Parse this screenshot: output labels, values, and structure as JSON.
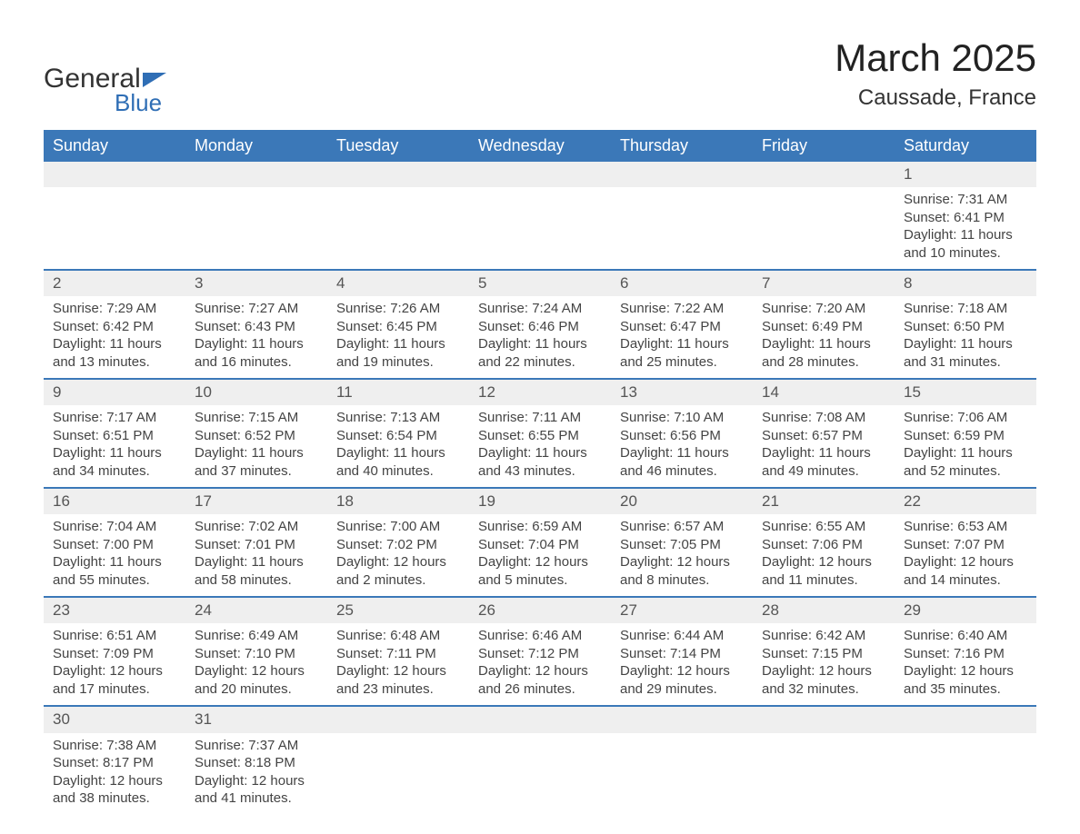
{
  "brand": {
    "general": "General",
    "blue": "Blue"
  },
  "title": "March 2025",
  "location": "Caussade, France",
  "colors": {
    "header_bg": "#3b78b8",
    "header_text": "#ffffff",
    "row_band": "#efefef",
    "row_border": "#3b78b8",
    "text": "#444444",
    "title_text": "#222222",
    "logo_accent": "#2f6eb5",
    "background": "#ffffff"
  },
  "typography": {
    "title_fontsize": 42,
    "location_fontsize": 24,
    "weekday_fontsize": 18,
    "cell_fontsize": 15,
    "daynum_fontsize": 17,
    "logo_general_fontsize": 30,
    "logo_blue_fontsize": 26
  },
  "weekdays": [
    "Sunday",
    "Monday",
    "Tuesday",
    "Wednesday",
    "Thursday",
    "Friday",
    "Saturday"
  ],
  "weeks": [
    {
      "days": [
        null,
        null,
        null,
        null,
        null,
        null,
        {
          "num": "1",
          "sunrise": "Sunrise: 7:31 AM",
          "sunset": "Sunset: 6:41 PM",
          "day1": "Daylight: 11 hours",
          "day2": "and 10 minutes."
        }
      ]
    },
    {
      "days": [
        {
          "num": "2",
          "sunrise": "Sunrise: 7:29 AM",
          "sunset": "Sunset: 6:42 PM",
          "day1": "Daylight: 11 hours",
          "day2": "and 13 minutes."
        },
        {
          "num": "3",
          "sunrise": "Sunrise: 7:27 AM",
          "sunset": "Sunset: 6:43 PM",
          "day1": "Daylight: 11 hours",
          "day2": "and 16 minutes."
        },
        {
          "num": "4",
          "sunrise": "Sunrise: 7:26 AM",
          "sunset": "Sunset: 6:45 PM",
          "day1": "Daylight: 11 hours",
          "day2": "and 19 minutes."
        },
        {
          "num": "5",
          "sunrise": "Sunrise: 7:24 AM",
          "sunset": "Sunset: 6:46 PM",
          "day1": "Daylight: 11 hours",
          "day2": "and 22 minutes."
        },
        {
          "num": "6",
          "sunrise": "Sunrise: 7:22 AM",
          "sunset": "Sunset: 6:47 PM",
          "day1": "Daylight: 11 hours",
          "day2": "and 25 minutes."
        },
        {
          "num": "7",
          "sunrise": "Sunrise: 7:20 AM",
          "sunset": "Sunset: 6:49 PM",
          "day1": "Daylight: 11 hours",
          "day2": "and 28 minutes."
        },
        {
          "num": "8",
          "sunrise": "Sunrise: 7:18 AM",
          "sunset": "Sunset: 6:50 PM",
          "day1": "Daylight: 11 hours",
          "day2": "and 31 minutes."
        }
      ]
    },
    {
      "days": [
        {
          "num": "9",
          "sunrise": "Sunrise: 7:17 AM",
          "sunset": "Sunset: 6:51 PM",
          "day1": "Daylight: 11 hours",
          "day2": "and 34 minutes."
        },
        {
          "num": "10",
          "sunrise": "Sunrise: 7:15 AM",
          "sunset": "Sunset: 6:52 PM",
          "day1": "Daylight: 11 hours",
          "day2": "and 37 minutes."
        },
        {
          "num": "11",
          "sunrise": "Sunrise: 7:13 AM",
          "sunset": "Sunset: 6:54 PM",
          "day1": "Daylight: 11 hours",
          "day2": "and 40 minutes."
        },
        {
          "num": "12",
          "sunrise": "Sunrise: 7:11 AM",
          "sunset": "Sunset: 6:55 PM",
          "day1": "Daylight: 11 hours",
          "day2": "and 43 minutes."
        },
        {
          "num": "13",
          "sunrise": "Sunrise: 7:10 AM",
          "sunset": "Sunset: 6:56 PM",
          "day1": "Daylight: 11 hours",
          "day2": "and 46 minutes."
        },
        {
          "num": "14",
          "sunrise": "Sunrise: 7:08 AM",
          "sunset": "Sunset: 6:57 PM",
          "day1": "Daylight: 11 hours",
          "day2": "and 49 minutes."
        },
        {
          "num": "15",
          "sunrise": "Sunrise: 7:06 AM",
          "sunset": "Sunset: 6:59 PM",
          "day1": "Daylight: 11 hours",
          "day2": "and 52 minutes."
        }
      ]
    },
    {
      "days": [
        {
          "num": "16",
          "sunrise": "Sunrise: 7:04 AM",
          "sunset": "Sunset: 7:00 PM",
          "day1": "Daylight: 11 hours",
          "day2": "and 55 minutes."
        },
        {
          "num": "17",
          "sunrise": "Sunrise: 7:02 AM",
          "sunset": "Sunset: 7:01 PM",
          "day1": "Daylight: 11 hours",
          "day2": "and 58 minutes."
        },
        {
          "num": "18",
          "sunrise": "Sunrise: 7:00 AM",
          "sunset": "Sunset: 7:02 PM",
          "day1": "Daylight: 12 hours",
          "day2": "and 2 minutes."
        },
        {
          "num": "19",
          "sunrise": "Sunrise: 6:59 AM",
          "sunset": "Sunset: 7:04 PM",
          "day1": "Daylight: 12 hours",
          "day2": "and 5 minutes."
        },
        {
          "num": "20",
          "sunrise": "Sunrise: 6:57 AM",
          "sunset": "Sunset: 7:05 PM",
          "day1": "Daylight: 12 hours",
          "day2": "and 8 minutes."
        },
        {
          "num": "21",
          "sunrise": "Sunrise: 6:55 AM",
          "sunset": "Sunset: 7:06 PM",
          "day1": "Daylight: 12 hours",
          "day2": "and 11 minutes."
        },
        {
          "num": "22",
          "sunrise": "Sunrise: 6:53 AM",
          "sunset": "Sunset: 7:07 PM",
          "day1": "Daylight: 12 hours",
          "day2": "and 14 minutes."
        }
      ]
    },
    {
      "days": [
        {
          "num": "23",
          "sunrise": "Sunrise: 6:51 AM",
          "sunset": "Sunset: 7:09 PM",
          "day1": "Daylight: 12 hours",
          "day2": "and 17 minutes."
        },
        {
          "num": "24",
          "sunrise": "Sunrise: 6:49 AM",
          "sunset": "Sunset: 7:10 PM",
          "day1": "Daylight: 12 hours",
          "day2": "and 20 minutes."
        },
        {
          "num": "25",
          "sunrise": "Sunrise: 6:48 AM",
          "sunset": "Sunset: 7:11 PM",
          "day1": "Daylight: 12 hours",
          "day2": "and 23 minutes."
        },
        {
          "num": "26",
          "sunrise": "Sunrise: 6:46 AM",
          "sunset": "Sunset: 7:12 PM",
          "day1": "Daylight: 12 hours",
          "day2": "and 26 minutes."
        },
        {
          "num": "27",
          "sunrise": "Sunrise: 6:44 AM",
          "sunset": "Sunset: 7:14 PM",
          "day1": "Daylight: 12 hours",
          "day2": "and 29 minutes."
        },
        {
          "num": "28",
          "sunrise": "Sunrise: 6:42 AM",
          "sunset": "Sunset: 7:15 PM",
          "day1": "Daylight: 12 hours",
          "day2": "and 32 minutes."
        },
        {
          "num": "29",
          "sunrise": "Sunrise: 6:40 AM",
          "sunset": "Sunset: 7:16 PM",
          "day1": "Daylight: 12 hours",
          "day2": "and 35 minutes."
        }
      ]
    },
    {
      "days": [
        {
          "num": "30",
          "sunrise": "Sunrise: 7:38 AM",
          "sunset": "Sunset: 8:17 PM",
          "day1": "Daylight: 12 hours",
          "day2": "and 38 minutes."
        },
        {
          "num": "31",
          "sunrise": "Sunrise: 7:37 AM",
          "sunset": "Sunset: 8:18 PM",
          "day1": "Daylight: 12 hours",
          "day2": "and 41 minutes."
        },
        null,
        null,
        null,
        null,
        null
      ]
    }
  ]
}
